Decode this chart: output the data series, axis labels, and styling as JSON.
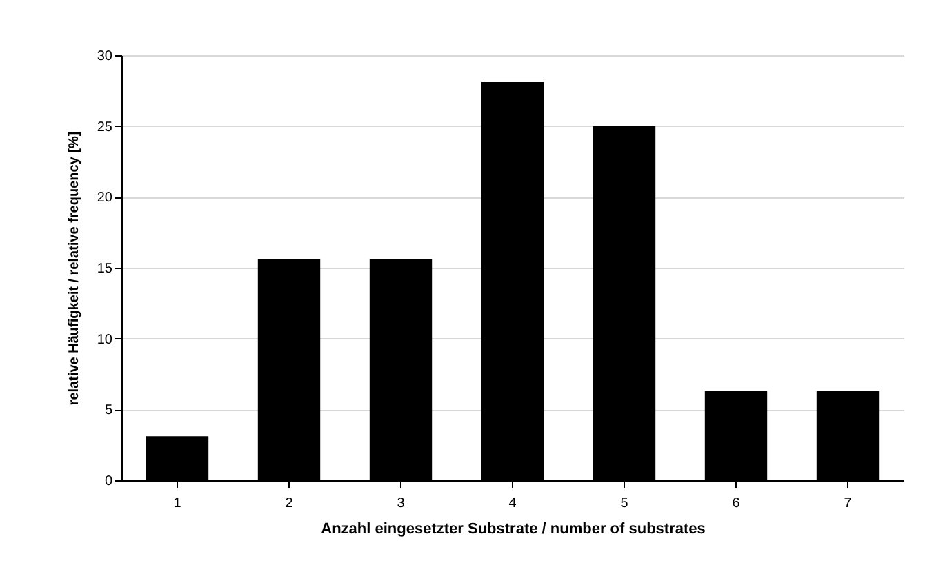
{
  "chart_data": {
    "type": "bar",
    "xlabel": "Anzahl eingesetzter Substrate / number of substrates",
    "ylabel": "relative Häufigkeit / relative frequency [%]",
    "categories": [
      "1",
      "2",
      "3",
      "4",
      "5",
      "6",
      "7"
    ],
    "values": [
      3.1,
      15.6,
      15.6,
      28.1,
      25.0,
      6.3,
      6.3
    ],
    "color": "#000000",
    "ylim": [
      0,
      30
    ],
    "yticks": [
      0,
      5,
      10,
      15,
      20,
      25,
      30
    ],
    "grid": "y"
  }
}
